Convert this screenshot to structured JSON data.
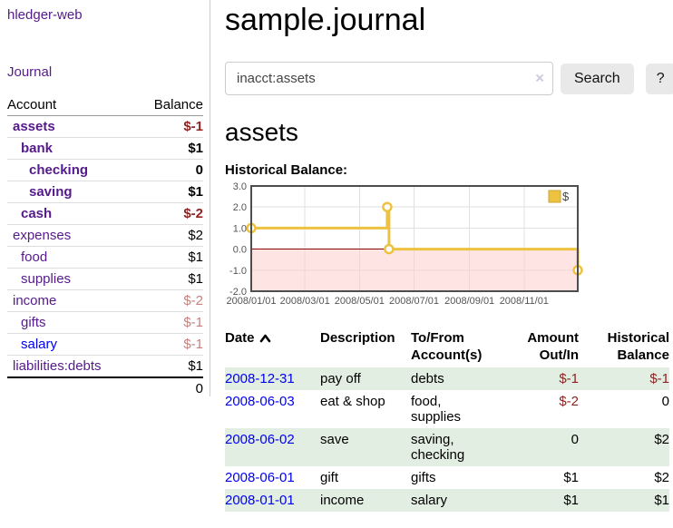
{
  "colors": {
    "link_purple": "#551a8b",
    "link_blue": "#0000ee",
    "negative_red": "#8e2323",
    "muted_negative": "#c4807e",
    "row_stripe_green": "#e3eee3",
    "series_gold": "#edc240",
    "zero_line_red": "#8b0000",
    "negative_area_pink": "#ffcdcd"
  },
  "sidebar": {
    "brand": "hledger-web",
    "journal_link": "Journal",
    "account_header": "Account",
    "balance_header": "Balance",
    "accounts": [
      {
        "name": "assets",
        "balance": "$-1",
        "level": 1,
        "matched": true,
        "name_style": "purple",
        "balance_style": "neg"
      },
      {
        "name": "bank",
        "balance": "$1",
        "level": 2,
        "matched": true,
        "name_style": "purple",
        "balance_style": ""
      },
      {
        "name": "checking",
        "balance": "0",
        "level": 3,
        "matched": true,
        "name_style": "purple",
        "balance_style": ""
      },
      {
        "name": "saving",
        "balance": "$1",
        "level": 3,
        "matched": true,
        "name_style": "purple",
        "balance_style": ""
      },
      {
        "name": "cash",
        "balance": "$-2",
        "level": 2,
        "matched": true,
        "name_style": "purple",
        "balance_style": "neg"
      },
      {
        "name": "expenses",
        "balance": "$2",
        "level": 1,
        "matched": false,
        "name_style": "purple",
        "balance_style": ""
      },
      {
        "name": "food",
        "balance": "$1",
        "level": 2,
        "matched": false,
        "name_style": "purple",
        "balance_style": ""
      },
      {
        "name": "supplies",
        "balance": "$1",
        "level": 2,
        "matched": false,
        "name_style": "purple",
        "balance_style": ""
      },
      {
        "name": "income",
        "balance": "$-2",
        "level": 1,
        "matched": false,
        "name_style": "purple",
        "balance_style": "muted-neg"
      },
      {
        "name": "gifts",
        "balance": "$-1",
        "level": 2,
        "matched": false,
        "name_style": "purple",
        "balance_style": "muted-neg"
      },
      {
        "name": "salary",
        "balance": "$-1",
        "level": 2,
        "matched": false,
        "name_style": "blue",
        "balance_style": "muted-neg"
      },
      {
        "name": "liabilities:debts",
        "balance": "$1",
        "level": 1,
        "matched": false,
        "name_style": "purple",
        "balance_style": ""
      }
    ],
    "total": "0"
  },
  "main": {
    "title": "sample.journal",
    "search": {
      "value": "inacct:assets",
      "clear_label": "×",
      "search_button": "Search",
      "help_button": "?"
    },
    "account_heading": "assets",
    "section_label": "Historical Balance:"
  },
  "chart_data": {
    "type": "line",
    "step": true,
    "title": "Historical Balance",
    "legend": "$",
    "legend_position": "top-right",
    "grid": true,
    "ylim": [
      -2,
      3
    ],
    "y_ticks": [
      {
        "label": "3.0",
        "value": 3
      },
      {
        "label": "2.0",
        "value": 2
      },
      {
        "label": "1.0",
        "value": 1
      },
      {
        "label": "0.0",
        "value": 0
      },
      {
        "label": "-1.0",
        "value": -1
      },
      {
        "label": "-2.0",
        "value": -2
      }
    ],
    "x_range": [
      "2008/01/01",
      "2008/12/31"
    ],
    "x_ticks": [
      "2008/01/01",
      "2008/03/01",
      "2008/05/01",
      "2008/07/01",
      "2008/09/01",
      "2008/11/01"
    ],
    "points": [
      [
        "2008/01/01",
        1
      ],
      [
        "2008/06/01",
        2
      ],
      [
        "2008/06/03",
        0
      ],
      [
        "2008/12/31",
        -1
      ]
    ],
    "negative_region_shaded": true
  },
  "register": {
    "headers": {
      "date": "Date",
      "description": "Description",
      "accounts": "To/From Account(s)",
      "amount": "Amount Out/In",
      "balance": "Historical Balance"
    },
    "rows": [
      {
        "date": "2008-12-31",
        "description": "pay off",
        "accounts": "debts",
        "amount": "$-1",
        "balance": "$-1",
        "amount_negative": true,
        "balance_negative": true
      },
      {
        "date": "2008-06-03",
        "description": "eat & shop",
        "accounts": "food, supplies",
        "amount": "$-2",
        "balance": "0",
        "amount_negative": true,
        "balance_negative": false
      },
      {
        "date": "2008-06-02",
        "description": "save",
        "accounts": "saving, checking",
        "amount": "0",
        "balance": "$2",
        "amount_negative": false,
        "balance_negative": false
      },
      {
        "date": "2008-06-01",
        "description": "gift",
        "accounts": "gifts",
        "amount": "$1",
        "balance": "$2",
        "amount_negative": false,
        "balance_negative": false
      },
      {
        "date": "2008-01-01",
        "description": "income",
        "accounts": "salary",
        "amount": "$1",
        "balance": "$1",
        "amount_negative": false,
        "balance_negative": false
      }
    ]
  }
}
